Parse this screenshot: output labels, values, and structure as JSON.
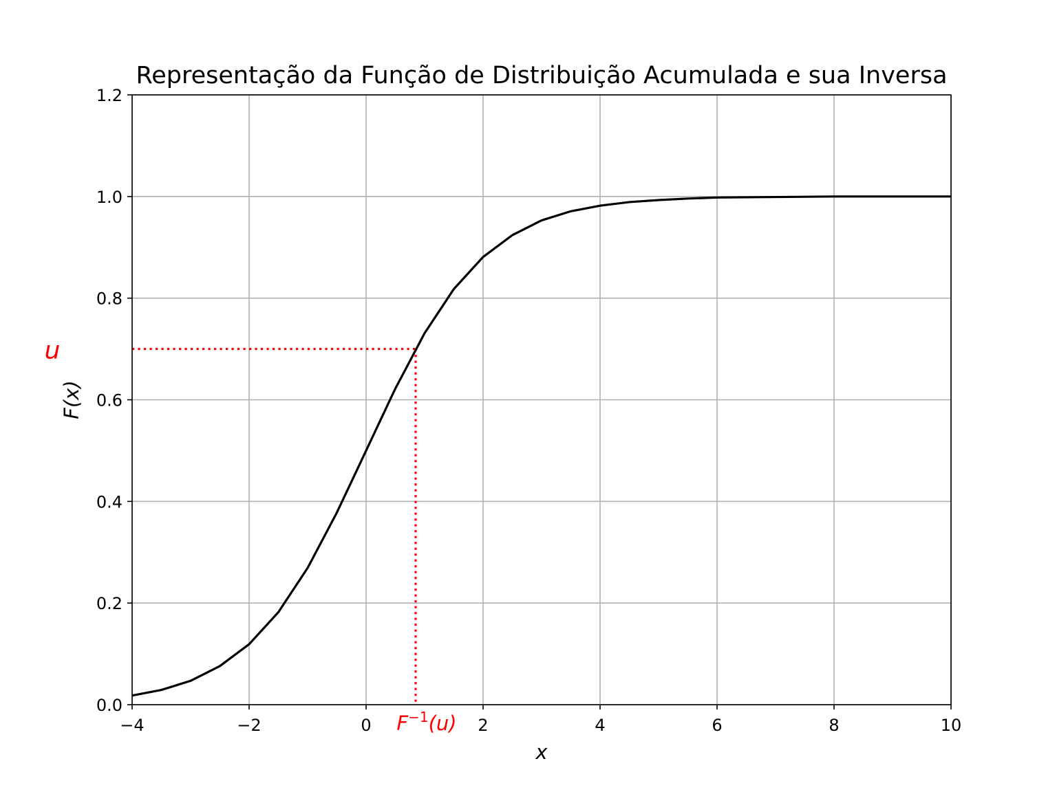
{
  "chart_data": {
    "type": "line",
    "title": "Representação da Função de Distribuição Acumulada e sua Inversa",
    "xlabel": "x",
    "ylabel": "F(x)",
    "xlim": [
      -4,
      10
    ],
    "ylim": [
      0.0,
      1.2
    ],
    "x_ticks": [
      -4,
      -2,
      0,
      2,
      4,
      6,
      8,
      10
    ],
    "x_tick_labels": [
      "−4",
      "−2",
      "0",
      "2",
      "4",
      "6",
      "8",
      "10"
    ],
    "y_ticks": [
      0.0,
      0.2,
      0.4,
      0.6,
      0.8,
      1.0,
      1.2
    ],
    "y_tick_labels": [
      "0.0",
      "0.2",
      "0.4",
      "0.6",
      "0.8",
      "1.0",
      "1.2"
    ],
    "grid": true,
    "series": [
      {
        "color": "#000000",
        "x": [
          -4,
          -3.5,
          -3,
          -2.5,
          -2,
          -1.5,
          -1,
          -0.5,
          0,
          0.5,
          1,
          1.5,
          2,
          2.5,
          3,
          3.5,
          4,
          4.5,
          5,
          5.5,
          6,
          7,
          8,
          9,
          10
        ],
        "y": [
          0.018,
          0.029,
          0.047,
          0.076,
          0.119,
          0.182,
          0.269,
          0.378,
          0.5,
          0.622,
          0.731,
          0.818,
          0.881,
          0.924,
          0.953,
          0.971,
          0.982,
          0.989,
          0.993,
          0.996,
          0.998,
          0.999,
          1.0,
          1.0,
          1.0
        ]
      }
    ],
    "annotations": {
      "color": "#ff0000",
      "u_value": 0.7,
      "inverse_x": 0.847,
      "u_label": "u",
      "inverse_label_base": "F",
      "inverse_label_sup": "−1",
      "inverse_label_arg": "(u)"
    }
  }
}
